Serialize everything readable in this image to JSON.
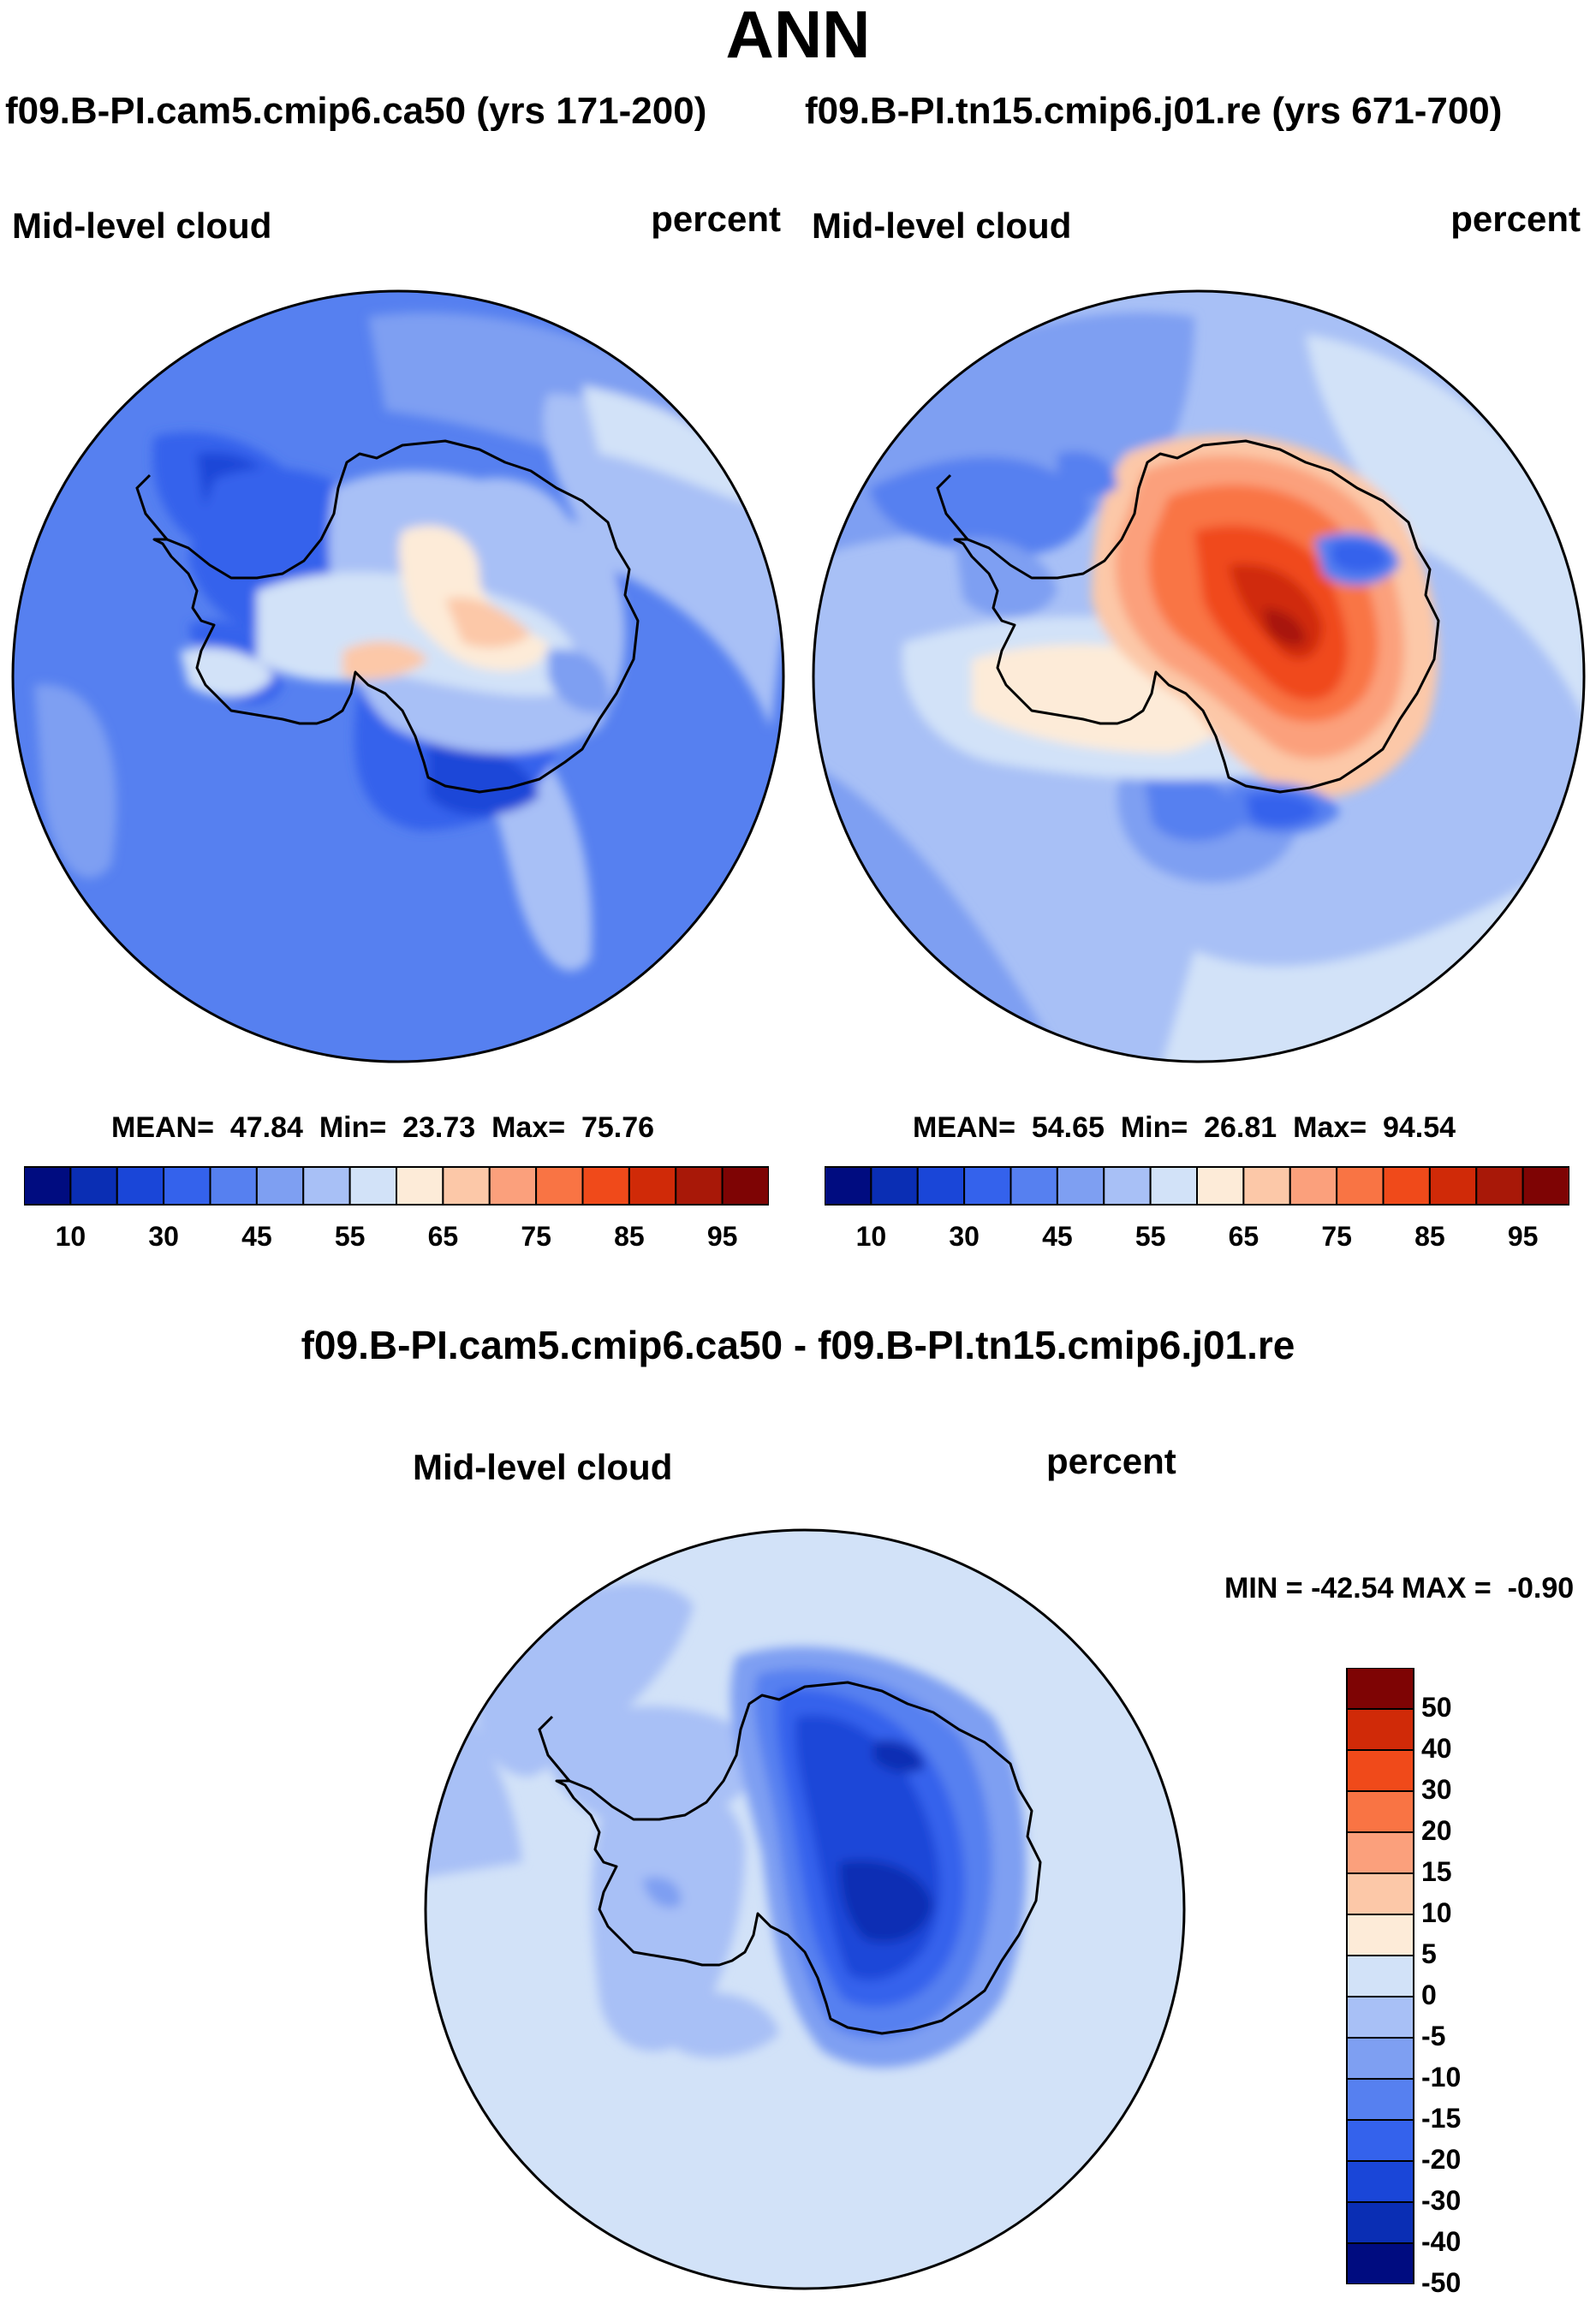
{
  "figure": {
    "title": "ANN",
    "case1_title": "f09.B-PI.cam5.cmip6.ca50 (yrs 171-200)",
    "case2_title": "f09.B-PI.tn15.cmip6.j01.re (yrs 671-700)",
    "diff_title": "f09.B-PI.cam5.cmip6.ca50 - f09.B-PI.tn15.cmip6.j01.re"
  },
  "panels": [
    {
      "variable": "Mid-level cloud",
      "units": "percent",
      "stats_text": "MEAN=  47.84  Min=  23.73  Max=  75.76"
    },
    {
      "variable": "Mid-level cloud",
      "units": "percent",
      "stats_text": "MEAN=  54.65  Min=  26.81  Max=  94.54"
    },
    {
      "variable": "Mid-level cloud",
      "units": "percent",
      "stats_text": "MIN = -42.54 MAX =  -0.90"
    }
  ],
  "colorbars": {
    "absolute": {
      "colors": [
        "#000c80",
        "#0a2eb4",
        "#1a46d8",
        "#3462ec",
        "#5680f0",
        "#7e9ff2",
        "#a8c0f6",
        "#d2e2f8",
        "#fdebd8",
        "#fcc8a8",
        "#fba07c",
        "#f97444",
        "#f04a1a",
        "#d02a08",
        "#a81808",
        "#7e0404"
      ],
      "labels": [
        "10",
        "30",
        "45",
        "55",
        "65",
        "75",
        "85",
        "95"
      ]
    },
    "difference": {
      "colors": [
        "#000c80",
        "#0a2eb4",
        "#1a46d8",
        "#3462ec",
        "#5680f0",
        "#7e9ff2",
        "#a8c0f6",
        "#d2e2f8",
        "#fdebd8",
        "#fcc8a8",
        "#fba07c",
        "#f97444",
        "#f04a1a",
        "#d02a08",
        "#7e0404"
      ],
      "labels": [
        "50",
        "40",
        "30",
        "20",
        "15",
        "10",
        "5",
        "0",
        "-5",
        "-10",
        "-15",
        "-20",
        "-30",
        "-40",
        "-50"
      ]
    }
  },
  "chart_data": [
    {
      "type": "heatmap",
      "title": "Mid-level cloud",
      "units": "percent",
      "projection": "south polar stereographic",
      "mean": 47.84,
      "min": 23.73,
      "max": 75.76,
      "contour_levels": [
        10,
        15,
        20,
        25,
        30,
        35,
        40,
        45,
        50,
        55,
        60,
        65,
        70,
        75,
        80,
        85,
        90,
        95
      ]
    },
    {
      "type": "heatmap",
      "title": "Mid-level cloud",
      "units": "percent",
      "projection": "south polar stereographic",
      "mean": 54.65,
      "min": 26.81,
      "max": 94.54,
      "contour_levels": [
        10,
        15,
        20,
        25,
        30,
        35,
        40,
        45,
        50,
        55,
        60,
        65,
        70,
        75,
        80,
        85,
        90,
        95
      ]
    },
    {
      "type": "heatmap",
      "title": "Mid-level cloud",
      "units": "percent",
      "projection": "south polar stereographic",
      "min": -42.54,
      "max": -0.9,
      "contour_levels": [
        -50,
        -40,
        -30,
        -20,
        -15,
        -10,
        -5,
        0,
        5,
        10,
        15,
        20,
        30,
        40,
        50
      ]
    }
  ]
}
